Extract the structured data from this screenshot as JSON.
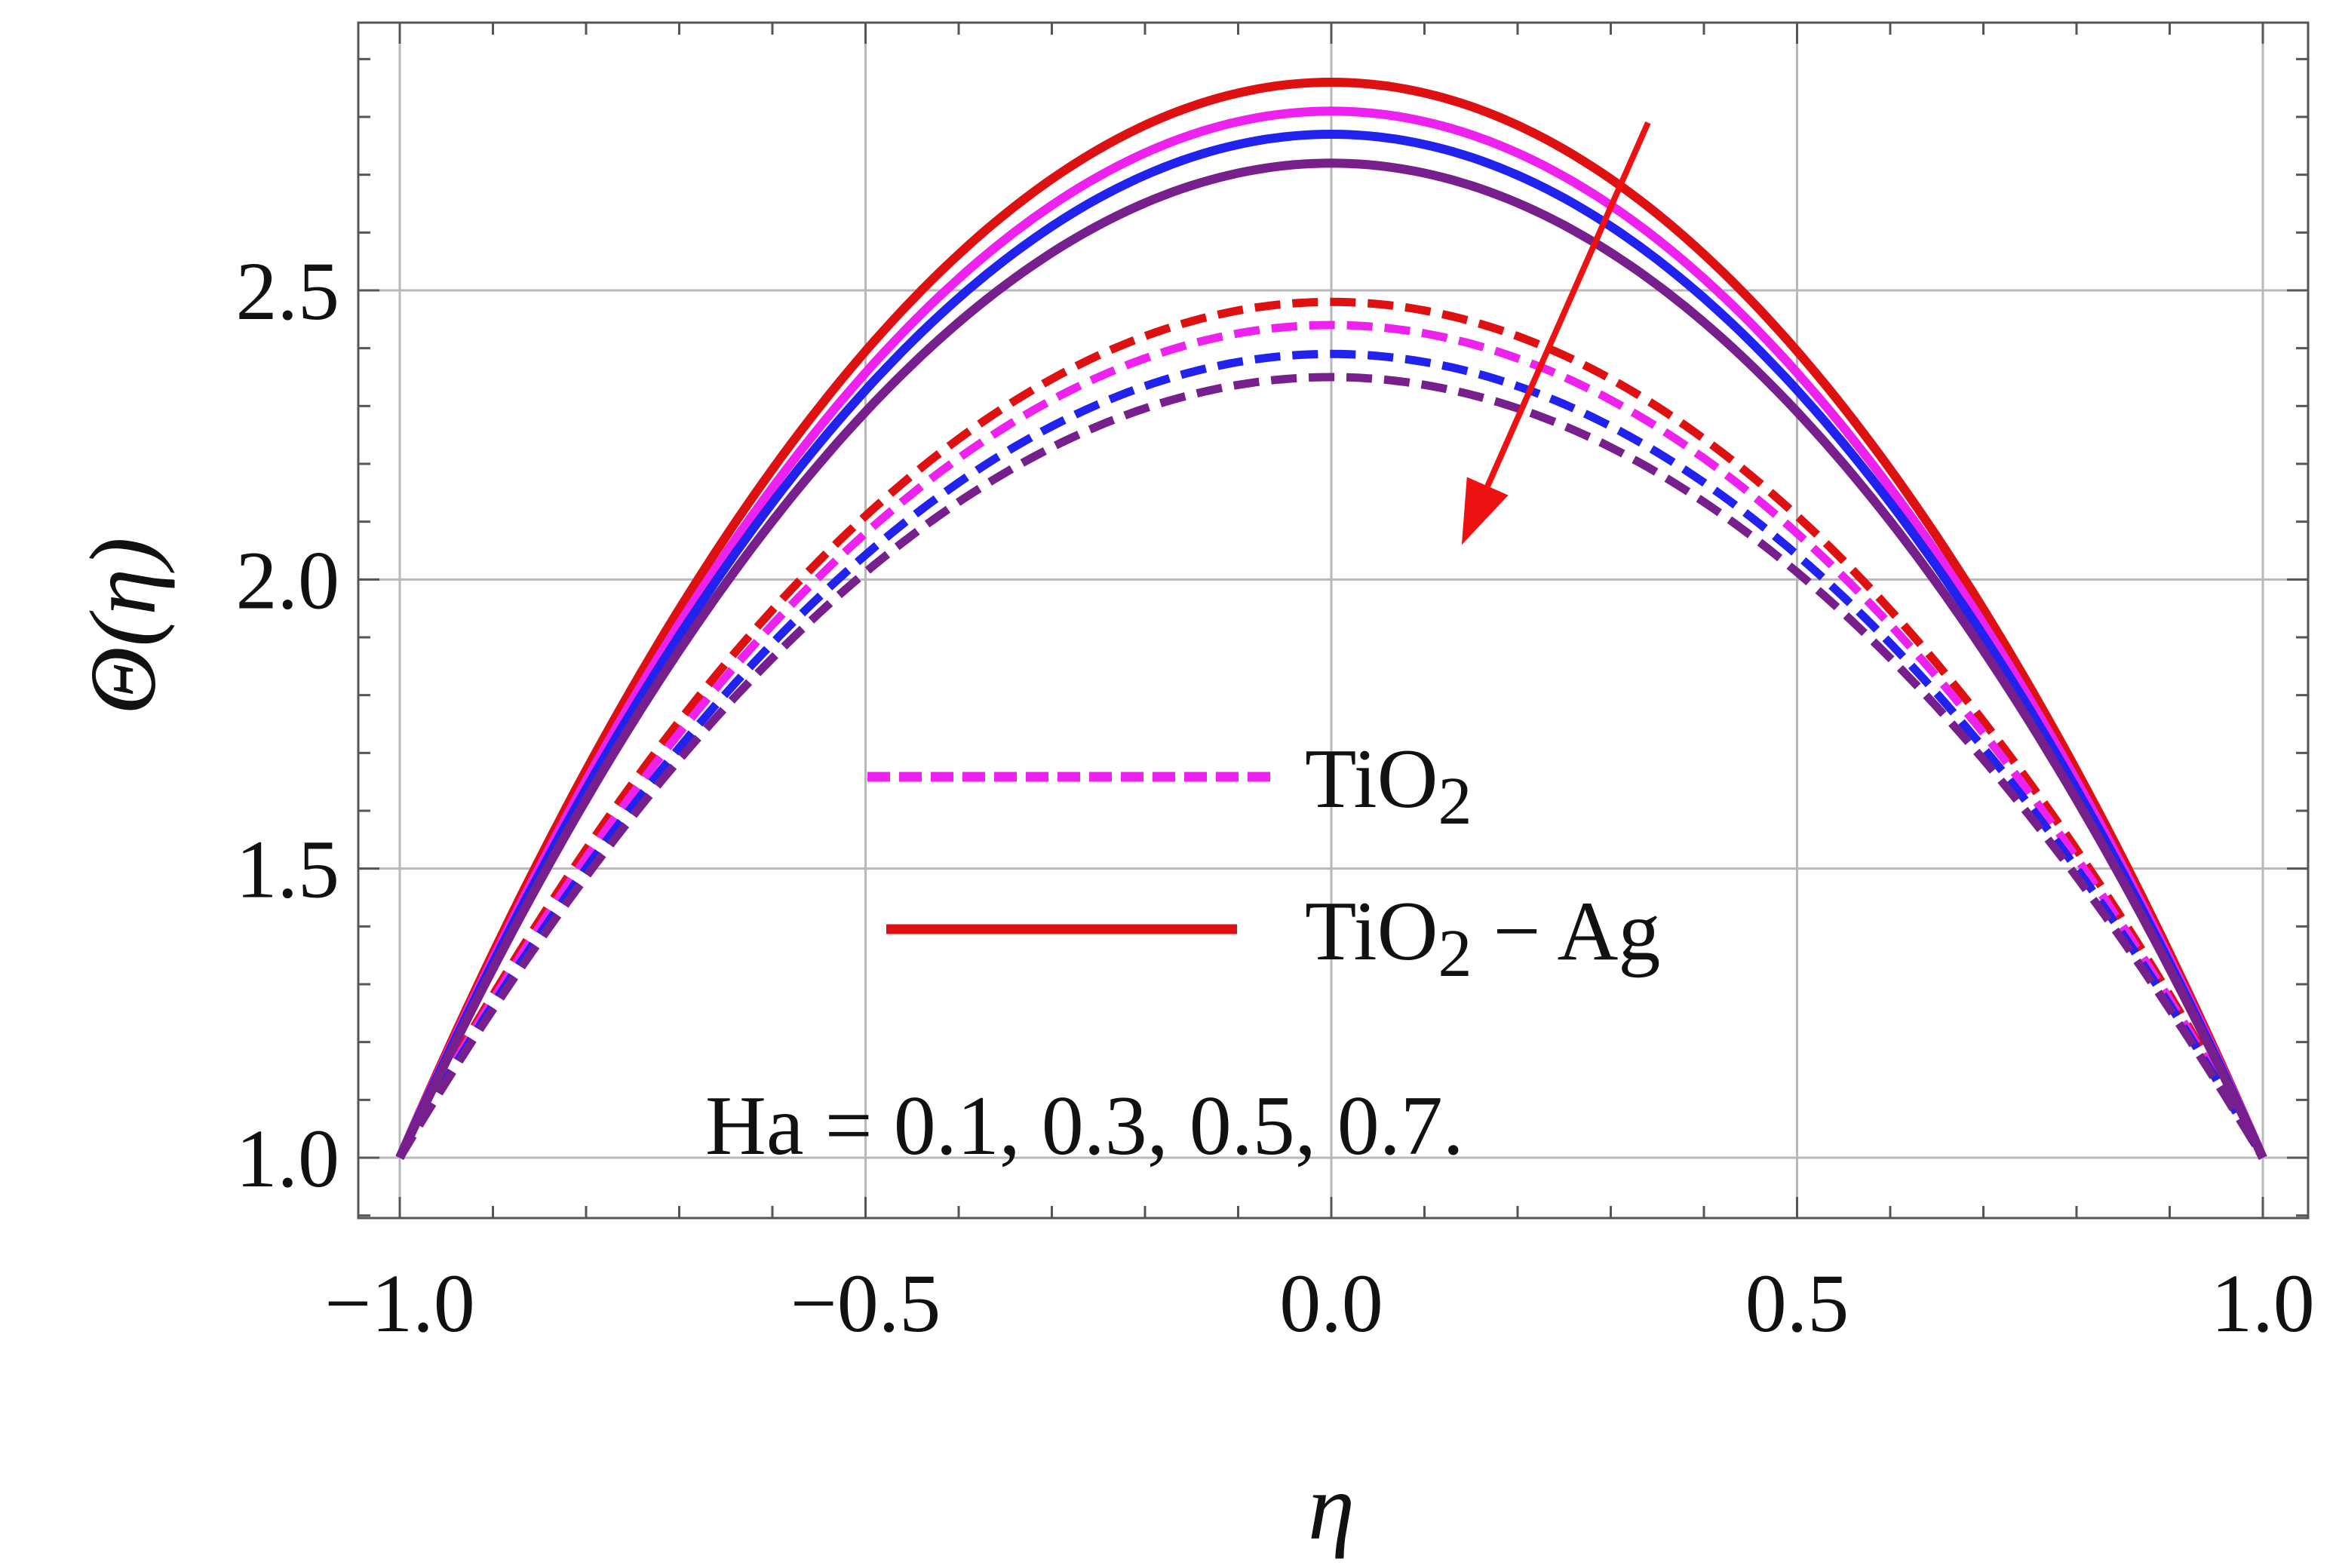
{
  "chart_data": {
    "type": "line",
    "title": "",
    "xlabel": "η",
    "ylabel": "Θ(η)",
    "xlim": [
      -1.0,
      1.0
    ],
    "ylim": [
      0.9,
      2.9
    ],
    "grid": true,
    "x_ticks": [
      -1.0,
      -0.5,
      0.0,
      0.5,
      1.0
    ],
    "x_tick_labels": [
      "−1.0",
      "−0.5",
      "0.0",
      "0.5",
      "1.0"
    ],
    "y_ticks": [
      1.0,
      1.5,
      2.0,
      2.5
    ],
    "y_tick_labels": [
      "1.0",
      "1.5",
      "2.0",
      "2.5"
    ],
    "profile": "theta(eta) = 1 + (peak - 1) * (1 - eta^2)",
    "series": [
      {
        "name": "TiO2 - Ag, Ha = 0.1",
        "group": "TiO2 - Ag",
        "style": "solid",
        "color": "#dd1111",
        "peak": 2.86
      },
      {
        "name": "TiO2 - Ag, Ha = 0.3",
        "group": "TiO2 - Ag",
        "style": "solid",
        "color": "#ee22ee",
        "peak": 2.81
      },
      {
        "name": "TiO2 - Ag, Ha = 0.5",
        "group": "TiO2 - Ag",
        "style": "solid",
        "color": "#2222ee",
        "peak": 2.77
      },
      {
        "name": "TiO2 - Ag, Ha = 0.7",
        "group": "TiO2 - Ag",
        "style": "solid",
        "color": "#771f8c",
        "peak": 2.72
      },
      {
        "name": "TiO2, Ha = 0.1",
        "group": "TiO2",
        "style": "dashed",
        "color": "#dd1111",
        "peak": 2.48
      },
      {
        "name": "TiO2, Ha = 0.3",
        "group": "TiO2",
        "style": "dashed",
        "color": "#ee22ee",
        "peak": 2.44
      },
      {
        "name": "TiO2, Ha = 0.5",
        "group": "TiO2",
        "style": "dashed",
        "color": "#2222ee",
        "peak": 2.39
      },
      {
        "name": "TiO2, Ha = 0.7",
        "group": "TiO2",
        "style": "dashed",
        "color": "#771f8c",
        "peak": 2.35
      }
    ],
    "legend": [
      {
        "label_main": "TiO",
        "label_sub": "2",
        "label_suffix": "",
        "style": "dashed",
        "color": "#ee22ee"
      },
      {
        "label_main": "TiO",
        "label_sub": "2",
        "label_suffix": " − Ag",
        "style": "solid",
        "color": "#dd1111"
      }
    ],
    "annotation": "Ha = 0.1, 0.3, 0.5, 0.7.",
    "arrow": {
      "from": [
        0.34,
        2.79
      ],
      "to": [
        0.14,
        2.06
      ],
      "color": "#ee1111",
      "meaning": "increasing Ha"
    }
  }
}
